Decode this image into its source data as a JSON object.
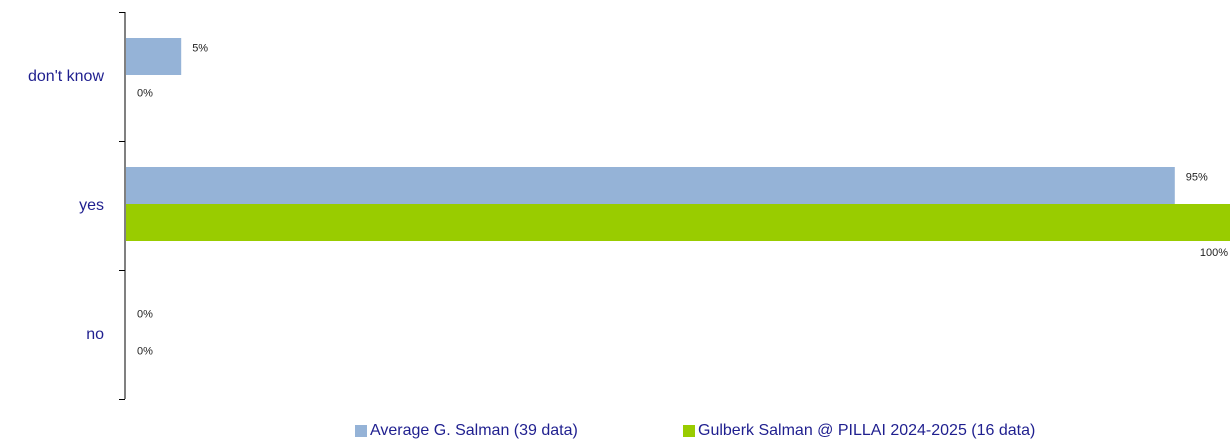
{
  "chart_data": {
    "type": "bar",
    "orientation": "horizontal",
    "categories": [
      "don't know",
      "yes",
      "no"
    ],
    "xlim": [
      0,
      100
    ],
    "grid": false,
    "legend_position": "bottom",
    "series": [
      {
        "name": "Average G. Salman (39 data)",
        "color": "#95b3d7",
        "values": [
          5,
          95,
          0
        ],
        "labels": [
          "5%",
          "95%",
          "0%"
        ]
      },
      {
        "name": "Gulberk Salman @ PILLAI 2024-2025 (16 data)",
        "color": "#99cc00",
        "values": [
          0,
          100,
          0
        ],
        "labels": [
          "0%",
          "100%",
          "0%"
        ]
      }
    ]
  }
}
